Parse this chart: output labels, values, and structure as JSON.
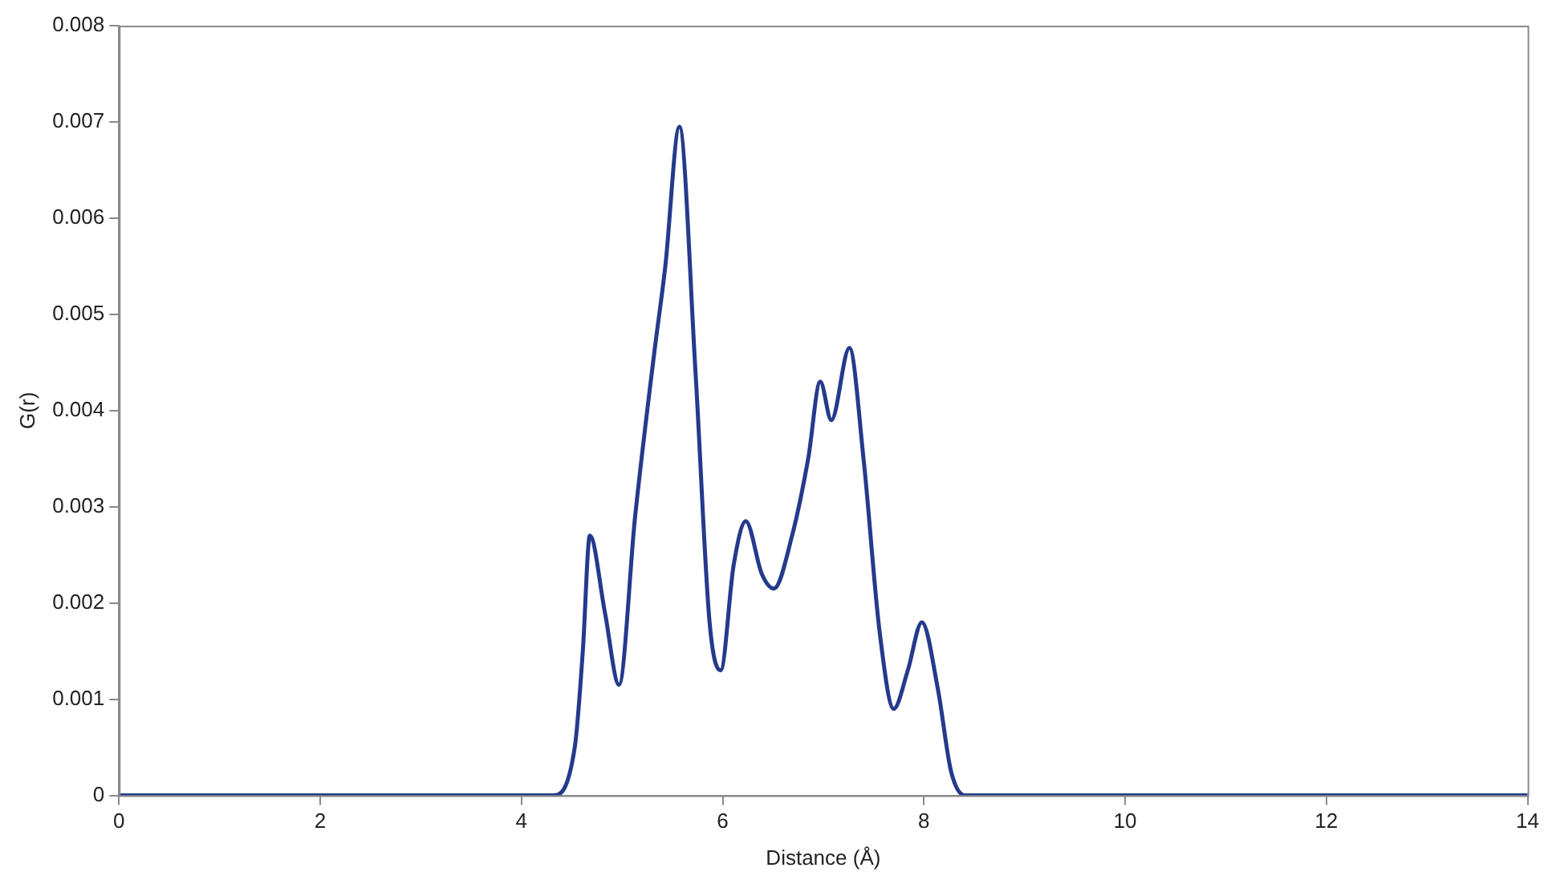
{
  "chart_data": {
    "type": "line",
    "xlabel": "Distance (Å)",
    "ylabel": "G(r)",
    "x": [
      0,
      2,
      4,
      4.2,
      4.31,
      4.53,
      4.61,
      4.68,
      4.83,
      4.97,
      5.13,
      5.32,
      5.43,
      5.57,
      5.73,
      5.87,
      5.98,
      6.11,
      6.23,
      6.39,
      6.51,
      6.69,
      6.85,
      6.97,
      7.08,
      7.26,
      7.4,
      7.56,
      7.7,
      7.84,
      7.98,
      8.14,
      8.27,
      8.41,
      10,
      12,
      14
    ],
    "series": [
      {
        "color": "#243a8c",
        "values": [
          0,
          0,
          0,
          0,
          0,
          0.0005,
          0.0015,
          0.0027,
          0.0019,
          0.00115,
          0.0029,
          0.0046,
          0.0055,
          0.00695,
          0.0044,
          0.0018,
          0.0013,
          0.0024,
          0.00285,
          0.0023,
          0.00215,
          0.0027,
          0.0035,
          0.0043,
          0.0039,
          0.00465,
          0.0035,
          0.0017,
          0.0009,
          0.0013,
          0.0018,
          0.0011,
          0.00025,
          0,
          0,
          0,
          0
        ]
      }
    ],
    "xlim": [
      0,
      14
    ],
    "ylim": [
      0,
      0.008
    ],
    "xticks": [
      0,
      2,
      4,
      6,
      8,
      10,
      12,
      14
    ],
    "yticks": [
      0,
      0.001,
      0.002,
      0.003,
      0.004,
      0.005,
      0.006,
      0.007,
      0.008
    ],
    "grid": false,
    "legend": false,
    "marker": "none",
    "line_style": "solid"
  }
}
